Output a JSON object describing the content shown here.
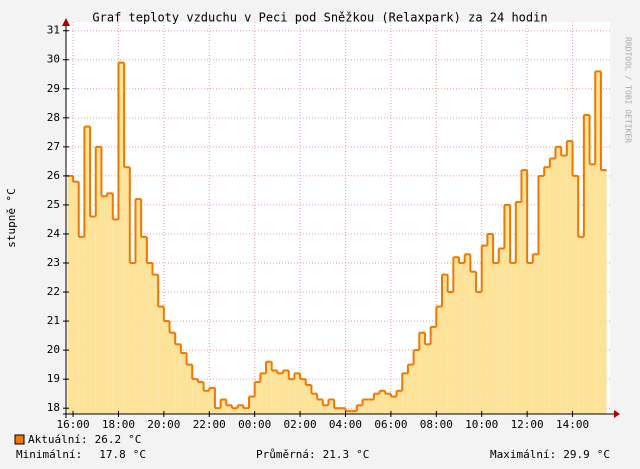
{
  "chart_data": {
    "type": "step-area",
    "title": "Graf teploty vzduchu v Peci pod Sněžkou (Relaxpark) za 24 hodin",
    "y_label": "stupně °C",
    "side_text": "RRDTOOL / TOBI OETIKER",
    "series": [
      {
        "name": "Aktuální:",
        "color": "#f07800",
        "fill": "#fde39a",
        "x": [
          15.75,
          16,
          16.25,
          16.5,
          16.75,
          17,
          17.25,
          17.5,
          17.75,
          18,
          18.25,
          18.5,
          18.75,
          19,
          19.25,
          19.5,
          19.75,
          20,
          20.25,
          20.5,
          20.75,
          21,
          21.25,
          21.5,
          21.75,
          22,
          22.25,
          22.5,
          22.75,
          23,
          23.25,
          23.5,
          23.75,
          24,
          24.25,
          24.5,
          24.75,
          25,
          25.25,
          25.5,
          25.75,
          26,
          26.25,
          26.5,
          26.75,
          27,
          27.25,
          27.5,
          27.75,
          28,
          28.25,
          28.5,
          28.75,
          29,
          29.25,
          29.5,
          29.75,
          30,
          30.25,
          30.5,
          30.75,
          31,
          31.25,
          31.5,
          31.75,
          32,
          32.25,
          32.5,
          32.75,
          33,
          33.25,
          33.5,
          33.75,
          34,
          34.25,
          34.5,
          34.75,
          35,
          35.25,
          35.5,
          35.75,
          36,
          36.25,
          36.5,
          36.75,
          37,
          37.25,
          37.5,
          37.75,
          38,
          38.25,
          38.5,
          38.75,
          39,
          39.25
        ],
        "values": [
          26.0,
          25.8,
          23.9,
          27.7,
          24.6,
          27.0,
          25.3,
          25.4,
          24.5,
          29.9,
          26.3,
          23.0,
          25.2,
          23.9,
          23.0,
          22.6,
          21.5,
          21.0,
          20.6,
          20.2,
          19.9,
          19.5,
          19.0,
          18.9,
          18.6,
          18.7,
          18.0,
          18.3,
          18.1,
          18.0,
          18.1,
          18.0,
          18.4,
          18.9,
          19.2,
          19.6,
          19.3,
          19.2,
          19.3,
          19.0,
          19.2,
          19.0,
          18.8,
          18.5,
          18.3,
          18.1,
          18.3,
          18.0,
          18.0,
          17.9,
          17.9,
          18.1,
          18.3,
          18.3,
          18.5,
          18.6,
          18.5,
          18.4,
          18.6,
          19.2,
          19.5,
          20.0,
          20.6,
          20.2,
          20.8,
          21.5,
          22.6,
          22.0,
          23.2,
          23.0,
          23.3,
          22.7,
          22.0,
          23.6,
          24.0,
          23.0,
          23.5,
          25.0,
          23.0,
          25.1,
          26.2,
          23.0,
          23.3,
          26.0,
          26.3,
          26.6,
          27.0,
          26.7,
          27.2,
          26.0,
          23.9,
          28.1,
          26.4,
          29.6,
          26.2
        ]
      }
    ],
    "xlim": [
      15.69,
      39.65
    ],
    "xticks": [
      {
        "value": 16,
        "label": "16:00"
      },
      {
        "value": 18,
        "label": "18:00"
      },
      {
        "value": 20,
        "label": "20:00"
      },
      {
        "value": 22,
        "label": "22:00"
      },
      {
        "value": 24,
        "label": "00:00"
      },
      {
        "value": 26,
        "label": "02:00"
      },
      {
        "value": 28,
        "label": "04:00"
      },
      {
        "value": 30,
        "label": "06:00"
      },
      {
        "value": 32,
        "label": "08:00"
      },
      {
        "value": 34,
        "label": "10:00"
      },
      {
        "value": 36,
        "label": "12:00"
      },
      {
        "value": 38,
        "label": "14:00"
      }
    ],
    "ylim": [
      17.8,
      31.3
    ],
    "yticks": [
      18,
      19,
      20,
      21,
      22,
      23,
      24,
      25,
      26,
      27,
      28,
      29,
      30,
      31
    ],
    "grid": true,
    "stats": [
      {
        "label": "Aktuální:",
        "value": 26.2,
        "unit": "°C"
      },
      {
        "label": "Minimální:",
        "value": 17.8,
        "unit": "°C"
      },
      {
        "label": "Průměrná:",
        "value": 21.3,
        "unit": "°C"
      },
      {
        "label": "Maximální:",
        "value": 29.9,
        "unit": "°C"
      }
    ]
  }
}
